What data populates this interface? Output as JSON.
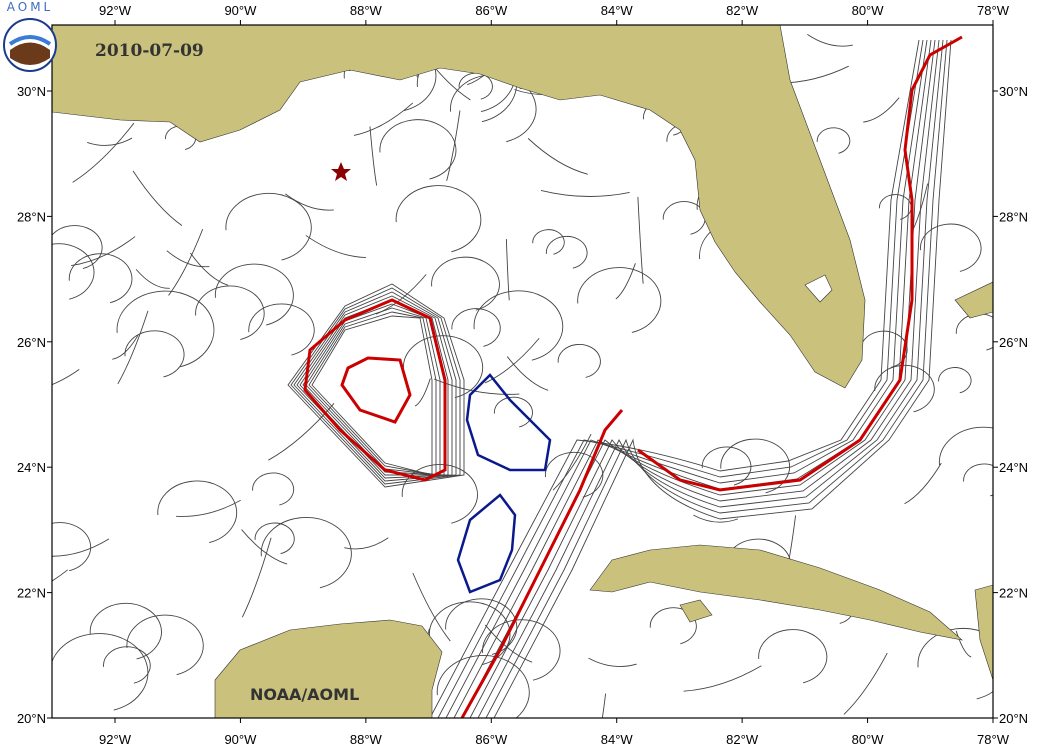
{
  "map": {
    "logo": "AOML",
    "date": "2010-07-09",
    "credit": "NOAA/AOML",
    "lon_labels": [
      "92°W",
      "90°W",
      "88°W",
      "86°W",
      "84°W",
      "82°W",
      "80°W",
      "78°W"
    ],
    "lat_labels": [
      "30°N",
      "28°N",
      "26°N",
      "24°N",
      "22°N",
      "20°N"
    ]
  }
}
